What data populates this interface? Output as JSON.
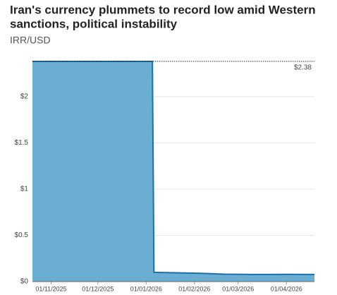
{
  "chart_data": {
    "type": "area",
    "title": [
      "Iran's currency plummets to record low amid Western",
      "sanctions, political instability"
    ],
    "subtitle": "IRR/USD",
    "x": [
      "2025-10-20",
      "2026-01-05",
      "2026-01-06",
      "2026-01-20",
      "2026-02-05",
      "2026-02-20",
      "2026-03-10",
      "2026-04-01",
      "2026-04-19"
    ],
    "values": [
      2.38,
      2.38,
      0.1,
      0.095,
      0.09,
      0.08,
      0.077,
      0.078,
      0.077
    ],
    "fill_color": "#6aaed3",
    "line_color": "#1f6fa8",
    "xlim": [
      "2025-10-20",
      "2026-04-19"
    ],
    "xticks": [
      {
        "value": "2025-11-01",
        "label": "01/11/2025"
      },
      {
        "value": "2025-12-01",
        "label": "01/12/2025"
      },
      {
        "value": "2026-01-01",
        "label": "01/01/2026"
      },
      {
        "value": "2026-02-01",
        "label": "01/02/2026"
      },
      {
        "value": "2026-03-01",
        "label": "01/03/2026"
      },
      {
        "value": "2026-04-01",
        "label": "01/04/2026"
      }
    ],
    "ylim": [
      0,
      2.38
    ],
    "yticks": [
      {
        "value": 0,
        "label": "$0"
      },
      {
        "value": 0.5,
        "label": "$0.5"
      },
      {
        "value": 1,
        "label": "$1"
      },
      {
        "value": 1.5,
        "label": "$1.5"
      },
      {
        "value": 2,
        "label": "$2"
      }
    ],
    "grid": true,
    "annotation": {
      "text": "$2.38",
      "value": 2.38
    }
  }
}
